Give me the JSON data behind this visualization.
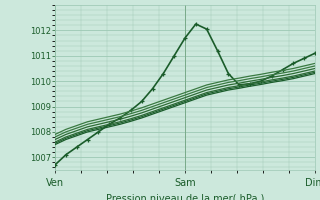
{
  "title": "Pression niveau de la mer( hPa )",
  "bg_color": "#cce8dc",
  "grid_color": "#9dc8b4",
  "line_color_1": "#1a5c2a",
  "line_color_2": "#2d6b35",
  "line_color_3": "#3a7a42",
  "ylim": [
    1006.5,
    1013.0
  ],
  "yticks": [
    1007,
    1008,
    1009,
    1010,
    1011,
    1012
  ],
  "xtick_labels": [
    "Ven",
    "Sam",
    "Dim"
  ],
  "xtick_positions": [
    0.0,
    0.5,
    1.0
  ],
  "series": [
    {
      "y": [
        1006.7,
        1007.1,
        1007.4,
        1007.7,
        1008.0,
        1008.3,
        1008.55,
        1008.85,
        1009.2,
        1009.7,
        1010.3,
        1011.0,
        1011.7,
        1012.25,
        1012.05,
        1011.2,
        1010.3,
        1009.85,
        1009.9,
        1010.0,
        1010.2,
        1010.45,
        1010.7,
        1010.9,
        1011.1
      ],
      "color": "#1a5c2a",
      "lw": 1.2,
      "marker": true
    },
    {
      "y": [
        1007.5,
        1007.7,
        1007.85,
        1008.0,
        1008.1,
        1008.2,
        1008.3,
        1008.42,
        1008.55,
        1008.7,
        1008.85,
        1009.0,
        1009.15,
        1009.3,
        1009.45,
        1009.55,
        1009.65,
        1009.72,
        1009.8,
        1009.87,
        1009.95,
        1010.02,
        1010.1,
        1010.2,
        1010.3
      ],
      "color": "#1a5c2a",
      "lw": 0.9,
      "marker": false
    },
    {
      "y": [
        1007.6,
        1007.8,
        1007.95,
        1008.1,
        1008.2,
        1008.3,
        1008.4,
        1008.52,
        1008.65,
        1008.8,
        1008.95,
        1009.1,
        1009.25,
        1009.4,
        1009.55,
        1009.65,
        1009.75,
        1009.82,
        1009.9,
        1009.97,
        1010.05,
        1010.12,
        1010.2,
        1010.3,
        1010.4
      ],
      "color": "#2d6b35",
      "lw": 0.9,
      "marker": false
    },
    {
      "y": [
        1007.7,
        1007.9,
        1008.05,
        1008.2,
        1008.3,
        1008.4,
        1008.5,
        1008.62,
        1008.75,
        1008.9,
        1009.05,
        1009.2,
        1009.35,
        1009.5,
        1009.65,
        1009.75,
        1009.85,
        1009.92,
        1010.0,
        1010.07,
        1010.15,
        1010.22,
        1010.3,
        1010.4,
        1010.5
      ],
      "color": "#2d6b35",
      "lw": 0.9,
      "marker": false
    },
    {
      "y": [
        1007.8,
        1008.0,
        1008.15,
        1008.3,
        1008.4,
        1008.5,
        1008.6,
        1008.72,
        1008.85,
        1009.0,
        1009.15,
        1009.3,
        1009.45,
        1009.6,
        1009.75,
        1009.85,
        1009.95,
        1010.02,
        1010.1,
        1010.17,
        1010.25,
        1010.32,
        1010.4,
        1010.5,
        1010.6
      ],
      "color": "#3a7a42",
      "lw": 0.9,
      "marker": false
    },
    {
      "y": [
        1007.9,
        1008.1,
        1008.25,
        1008.4,
        1008.5,
        1008.6,
        1008.7,
        1008.82,
        1008.95,
        1009.1,
        1009.25,
        1009.4,
        1009.55,
        1009.7,
        1009.85,
        1009.95,
        1010.05,
        1010.12,
        1010.2,
        1010.27,
        1010.35,
        1010.42,
        1010.5,
        1010.6,
        1010.7
      ],
      "color": "#3a7a42",
      "lw": 0.9,
      "marker": false
    },
    {
      "y": [
        1007.55,
        1007.75,
        1007.9,
        1008.05,
        1008.15,
        1008.25,
        1008.35,
        1008.47,
        1008.6,
        1008.75,
        1008.9,
        1009.05,
        1009.2,
        1009.35,
        1009.5,
        1009.6,
        1009.7,
        1009.77,
        1009.85,
        1009.92,
        1010.0,
        1010.07,
        1010.15,
        1010.25,
        1010.35
      ],
      "color": "#1a5c2a",
      "lw": 0.8,
      "marker": false
    }
  ],
  "n_points": 25
}
